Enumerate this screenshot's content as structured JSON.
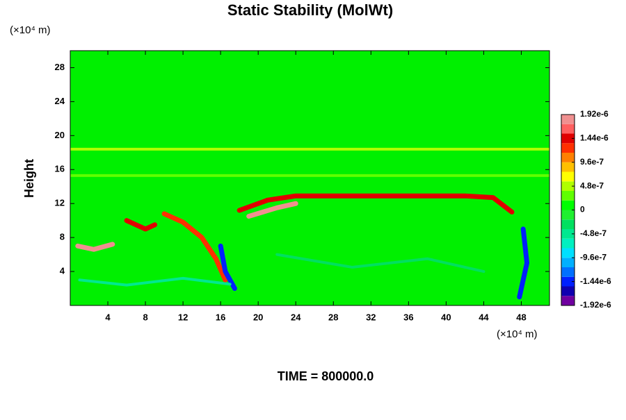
{
  "chart_data": {
    "type": "contour",
    "title": "Static Stability (MolWt)",
    "y_label": "Height",
    "x_unit": "(×10⁴ m)",
    "y_unit": "(×10⁴ m)",
    "footer": "TIME = 800000.0",
    "xlim": [
      0,
      51
    ],
    "ylim": [
      0,
      30
    ],
    "xticks": [
      4,
      8,
      12,
      16,
      20,
      24,
      28,
      32,
      36,
      40,
      44,
      48
    ],
    "yticks": [
      4,
      8,
      12,
      16,
      20,
      24,
      28
    ],
    "colorbar": {
      "ticks": [
        {
          "value": -1.92e-06,
          "label": "-1.92e-6"
        },
        {
          "value": -1.44e-06,
          "label": "-1.44e-6"
        },
        {
          "value": -9.6e-07,
          "label": "-9.6e-7"
        },
        {
          "value": -4.8e-07,
          "label": "-4.8e-7"
        },
        0,
        {
          "value": 4.8e-07,
          "label": "4.8e-7"
        },
        {
          "value": 9.6e-07,
          "label": "9.6e-7"
        },
        {
          "value": 1.44e-06,
          "label": "1.44e-6"
        },
        {
          "value": 1.92e-06,
          "label": "1.92e-6"
        }
      ],
      "colors": [
        "#7000a0",
        "#1000b0",
        "#0020ff",
        "#0070ff",
        "#00b0ff",
        "#00e0ff",
        "#00f0c0",
        "#00e890",
        "#00e060",
        "#20f030",
        "#00ff00",
        "#60ff00",
        "#b0ff00",
        "#ffff00",
        "#ffc000",
        "#ff8000",
        "#ff3000",
        "#e00000",
        "#ff6060",
        "#f09090"
      ]
    },
    "features": [
      {
        "x": [
          0,
          51
        ],
        "y": [
          18.4,
          18.4
        ],
        "value": 4.8e-07
      },
      {
        "x": [
          0,
          51
        ],
        "y": [
          15.3,
          15.3
        ],
        "value": 3e-07
      },
      {
        "x": [
          18,
          21,
          24,
          30,
          36,
          42,
          45,
          47
        ],
        "y": [
          11.2,
          12.4,
          12.9,
          12.9,
          12.9,
          12.9,
          12.7,
          11.0
        ],
        "value": 1.44e-06
      },
      {
        "x": [
          19,
          22,
          24
        ],
        "y": [
          10.5,
          11.5,
          12.0
        ],
        "value": 1.92e-06
      },
      {
        "x": [
          0.8,
          2.5,
          4.5
        ],
        "y": [
          7.0,
          6.6,
          7.2
        ],
        "value": 1.92e-06
      },
      {
        "x": [
          10,
          12,
          14,
          15.5,
          16.5
        ],
        "y": [
          10.8,
          9.8,
          8.0,
          5.5,
          3.0
        ],
        "value": 1.2e-06
      },
      {
        "x": [
          6,
          8,
          9
        ],
        "y": [
          10,
          9,
          9.5
        ],
        "value": 1.44e-06
      },
      {
        "x": [
          16,
          16.5,
          17.5
        ],
        "y": [
          7,
          4,
          2
        ],
        "value": -1.44e-06
      },
      {
        "x": [
          48.2,
          48.6,
          47.8
        ],
        "y": [
          9,
          5,
          1
        ],
        "value": -1.44e-06
      },
      {
        "x": [
          1,
          6,
          12,
          17
        ],
        "y": [
          3,
          2.4,
          3.2,
          2.5
        ],
        "value": -4.8e-07
      },
      {
        "x": [
          22,
          30,
          38,
          44
        ],
        "y": [
          6,
          4.5,
          5.5,
          4
        ],
        "value": -2.4e-07
      }
    ]
  }
}
